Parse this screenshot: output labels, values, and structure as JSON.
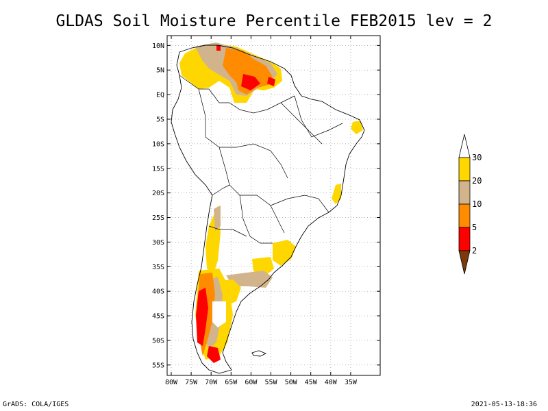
{
  "title": "GLDAS Soil Moisture Percentile FEB2015 lev = 2",
  "footer": {
    "left": "GrADS: COLA/IGES",
    "right": "2021-05-13-18:36"
  },
  "map": {
    "lon_range": [
      -80,
      -30
    ],
    "lat_range": [
      -56,
      12
    ],
    "lat_ticks": [
      {
        "value": 10,
        "label": "10N"
      },
      {
        "value": 5,
        "label": "5N"
      },
      {
        "value": 0,
        "label": "EQ"
      },
      {
        "value": -5,
        "label": "5S"
      },
      {
        "value": -10,
        "label": "10S"
      },
      {
        "value": -15,
        "label": "15S"
      },
      {
        "value": -20,
        "label": "20S"
      },
      {
        "value": -25,
        "label": "25S"
      },
      {
        "value": -30,
        "label": "30S"
      },
      {
        "value": -35,
        "label": "35S"
      },
      {
        "value": -40,
        "label": "40S"
      },
      {
        "value": -45,
        "label": "45S"
      },
      {
        "value": -50,
        "label": "50S"
      },
      {
        "value": -55,
        "label": "55S"
      }
    ],
    "lon_ticks": [
      {
        "value": -80,
        "label": "80W"
      },
      {
        "value": -75,
        "label": "75W"
      },
      {
        "value": -70,
        "label": "70W"
      },
      {
        "value": -65,
        "label": "65W"
      },
      {
        "value": -60,
        "label": "60W"
      },
      {
        "value": -55,
        "label": "55W"
      },
      {
        "value": -50,
        "label": "50W"
      },
      {
        "value": -45,
        "label": "45W"
      },
      {
        "value": -40,
        "label": "40W"
      },
      {
        "value": -35,
        "label": "35W"
      }
    ]
  },
  "colorbar": {
    "bins": [
      {
        "color": "#7a3a0a"
      },
      {
        "color": "#ff0000"
      },
      {
        "color": "#ff8c00"
      },
      {
        "color": "#d2b48c"
      },
      {
        "color": "#ffd700"
      },
      {
        "color": "#ffffff"
      }
    ],
    "labels": [
      "2",
      "5",
      "10",
      "20",
      "30"
    ]
  }
}
